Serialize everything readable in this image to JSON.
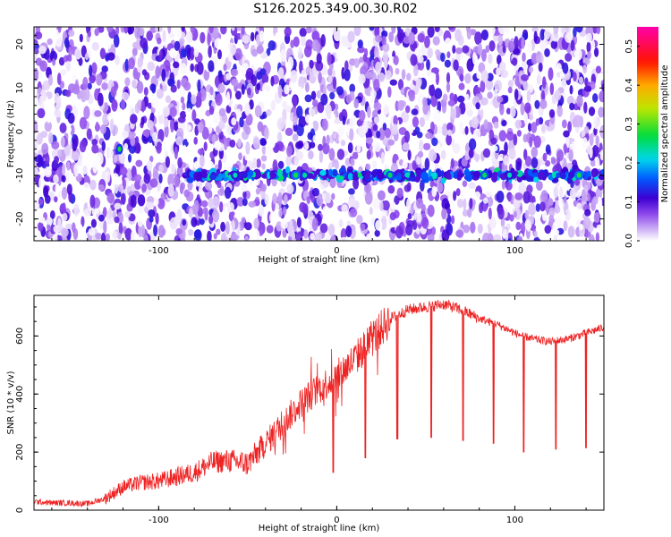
{
  "title": "S126.2025.349.00.30.R02",
  "chart_data": [
    {
      "type": "heatmap",
      "xlabel": "Height of straight line (km)",
      "ylabel": "Frequency (Hz)",
      "xlim": [
        -170,
        150
      ],
      "ylim": [
        -25,
        24
      ],
      "x_ticks": [
        -100,
        0,
        100
      ],
      "x_tick_labels": [
        "-100",
        "0",
        "100"
      ],
      "y_ticks": [
        -20,
        -10,
        0,
        10,
        20
      ],
      "y_tick_labels": [
        "-20",
        "-10",
        "0",
        "10",
        "20"
      ],
      "colorbar": {
        "label": "Normalized spectral amplitude",
        "range": [
          0,
          0.55
        ],
        "ticks": [
          0.0,
          0.1,
          0.2,
          0.3,
          0.4,
          0.5
        ],
        "tick_labels": [
          "0.0",
          "0.1",
          "0.2",
          "0.3",
          "0.4",
          "0.5"
        ]
      },
      "features": [
        {
          "description": "strong horizontal band",
          "frequency_hz": -10,
          "x_range": [
            -85,
            150
          ],
          "peak_amplitude": 0.22
        },
        {
          "description": "isolated strong spot",
          "x": -122,
          "frequency_hz": -4,
          "amplitude": 0.18
        }
      ]
    },
    {
      "type": "line",
      "xlabel": "Height of straight line (km)",
      "ylabel": "SNR (10 * v/v)",
      "xlim": [
        -170,
        150
      ],
      "ylim": [
        0,
        740
      ],
      "x_ticks": [
        -100,
        0,
        100
      ],
      "x_tick_labels": [
        "-100",
        "0",
        "100"
      ],
      "y_ticks": [
        0,
        200,
        400,
        600
      ],
      "y_tick_labels": [
        "0",
        "200",
        "400",
        "600"
      ],
      "series": [
        {
          "color": "#ee2222",
          "x": [
            -170,
            -160,
            -150,
            -140,
            -130,
            -120,
            -110,
            -100,
            -90,
            -80,
            -70,
            -60,
            -50,
            -40,
            -30,
            -20,
            -10,
            0,
            10,
            20,
            30,
            40,
            50,
            60,
            70,
            80,
            90,
            100,
            110,
            120,
            130,
            140,
            150
          ],
          "y": [
            30,
            25,
            25,
            22,
            40,
            80,
            95,
            100,
            115,
            130,
            165,
            170,
            160,
            230,
            300,
            370,
            420,
            460,
            520,
            590,
            660,
            690,
            700,
            710,
            690,
            660,
            640,
            610,
            590,
            580,
            590,
            610,
            630
          ],
          "dips": [
            {
              "x": -22,
              "y": 330
            },
            {
              "x": -2,
              "y": 130
            },
            {
              "x": 16,
              "y": 180
            },
            {
              "x": 34,
              "y": 245
            },
            {
              "x": 53,
              "y": 250
            },
            {
              "x": 71,
              "y": 240
            },
            {
              "x": 88,
              "y": 230
            },
            {
              "x": 105,
              "y": 200
            },
            {
              "x": 123,
              "y": 210
            },
            {
              "x": 140,
              "y": 215
            }
          ]
        }
      ]
    }
  ]
}
